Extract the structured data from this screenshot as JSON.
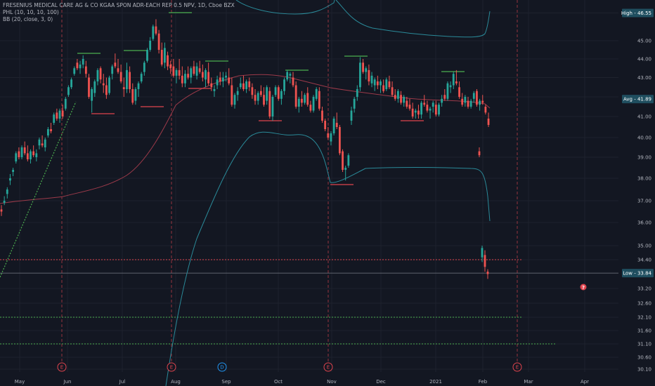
{
  "legend": {
    "title": "FRESENIUS MEDICAL CARE AG & CO KGAA SPON ADR-EACH REP 0.5 NPV, 1D, Cboe BZX",
    "indicator1": "PHL (10, 10, 10, 100)",
    "indicator2": "BB (20, close, 3, 0)"
  },
  "chart_data": {
    "type": "candlestick",
    "y_ticks": [
      "46.55",
      "45.00",
      "44.00",
      "43.00",
      "42.00",
      "41.00",
      "40.00",
      "39.00",
      "38.00",
      "37.00",
      "36.00",
      "35.00",
      "34.40",
      "33.20",
      "32.60",
      "32.10",
      "31.60",
      "31.10",
      "30.60",
      "30.10"
    ],
    "x_ticks": [
      "May",
      "Jun",
      "Jul",
      "Aug",
      "Sep",
      "Oct",
      "Nov",
      "Dec",
      "2021",
      "Feb",
      "Mar",
      "Apr"
    ],
    "price_labels": [
      {
        "text": "High - 46.55",
        "value": 46.55,
        "bg": "#1f4e5f",
        "color": "#ffffff"
      },
      {
        "text": "Avg - 41.89",
        "value": 41.89,
        "bg": "#1f4e5f",
        "color": "#ffffff"
      },
      {
        "text": "Low - 33.84",
        "value": 33.84,
        "bg": "#1f4e5f",
        "color": "#ffffff"
      }
    ],
    "events": [
      {
        "label": "E",
        "date": "May 28",
        "color": "#e0444e"
      },
      {
        "label": "E",
        "date": "Jul 30",
        "color": "#e0444e"
      },
      {
        "label": "D",
        "date": "Aug 28",
        "color": "#2196f3"
      },
      {
        "label": "E",
        "date": "Nov 3",
        "color": "#e0444e"
      },
      {
        "label": "E",
        "date": "Feb 24",
        "color": "#e0444e"
      }
    ],
    "horizontal_levels": [
      {
        "name": "red-dotted-level",
        "value": 34.4,
        "color": "#e0444e"
      },
      {
        "name": "green-dotted-level-1",
        "value": 32.1,
        "color": "#4caf50"
      },
      {
        "name": "green-dotted-level-2",
        "value": 31.1,
        "color": "#4caf50"
      }
    ],
    "ohlc": [
      [
        36.6,
        36.8,
        36.3,
        36.5
      ],
      [
        36.9,
        37.2,
        36.8,
        37.0
      ],
      [
        37.3,
        37.6,
        37.1,
        37.5
      ],
      [
        37.9,
        38.2,
        37.7,
        38.0
      ],
      [
        38.3,
        38.5,
        38.1,
        38.4
      ],
      [
        38.8,
        39.3,
        38.7,
        39.2
      ],
      [
        39.3,
        39.5,
        38.9,
        39.0
      ],
      [
        39.0,
        39.6,
        38.9,
        39.5
      ],
      [
        39.5,
        39.8,
        39.1,
        39.2
      ],
      [
        39.2,
        39.6,
        38.8,
        38.9
      ],
      [
        38.9,
        39.4,
        38.7,
        39.3
      ],
      [
        39.3,
        39.6,
        39.0,
        39.1
      ],
      [
        39.0,
        39.4,
        38.8,
        39.2
      ],
      [
        39.6,
        40.0,
        39.4,
        39.9
      ],
      [
        39.7,
        40.1,
        39.5,
        39.6
      ],
      [
        39.5,
        40.0,
        39.3,
        39.9
      ],
      [
        40.1,
        40.5,
        40.0,
        40.4
      ],
      [
        40.4,
        40.7,
        40.2,
        40.3
      ],
      [
        40.7,
        41.2,
        40.6,
        41.1
      ],
      [
        41.2,
        41.4,
        40.8,
        40.9
      ],
      [
        40.9,
        41.4,
        40.7,
        41.3
      ],
      [
        41.3,
        41.6,
        40.9,
        41.0
      ],
      [
        41.4,
        42.0,
        41.3,
        41.9
      ],
      [
        42.1,
        42.6,
        42.0,
        42.5
      ],
      [
        42.5,
        43.0,
        42.4,
        42.9
      ],
      [
        43.2,
        43.6,
        43.1,
        43.5
      ],
      [
        43.8,
        44.0,
        43.4,
        43.5
      ],
      [
        43.5,
        43.9,
        43.2,
        43.7
      ],
      [
        43.7,
        44.2,
        43.5,
        44.0
      ],
      [
        43.6,
        43.9,
        43.0,
        43.2
      ],
      [
        43.0,
        43.2,
        41.9,
        42.0
      ],
      [
        41.8,
        42.5,
        41.2,
        42.4
      ],
      [
        42.2,
        42.9,
        42.0,
        42.8
      ],
      [
        42.8,
        43.5,
        42.6,
        43.4
      ],
      [
        43.5,
        43.6,
        42.7,
        42.9
      ],
      [
        42.7,
        43.2,
        42.2,
        42.6
      ],
      [
        42.6,
        43.0,
        41.9,
        42.1
      ],
      [
        42.2,
        43.1,
        42.1,
        43.0
      ],
      [
        43.2,
        43.7,
        42.9,
        43.6
      ],
      [
        43.8,
        44.3,
        43.5,
        43.6
      ],
      [
        43.5,
        44.0,
        43.2,
        43.3
      ],
      [
        43.3,
        43.7,
        42.7,
        42.8
      ],
      [
        42.5,
        43.0,
        42.0,
        42.4
      ],
      [
        42.4,
        43.8,
        42.2,
        43.4
      ],
      [
        43.3,
        43.6,
        42.2,
        42.4
      ],
      [
        42.4,
        42.7,
        41.6,
        41.7
      ],
      [
        41.8,
        42.5,
        41.6,
        42.4
      ],
      [
        42.4,
        42.8,
        42.0,
        42.7
      ],
      [
        42.8,
        43.3,
        42.7,
        43.2
      ],
      [
        43.3,
        43.9,
        43.1,
        43.8
      ],
      [
        43.9,
        44.6,
        43.8,
        44.5
      ],
      [
        44.5,
        45.2,
        44.4,
        45.0
      ],
      [
        45.1,
        45.9,
        45.0,
        45.8
      ],
      [
        45.8,
        46.2,
        45.3,
        45.4
      ],
      [
        45.4,
        45.6,
        44.3,
        44.5
      ],
      [
        44.5,
        44.9,
        43.6,
        43.7
      ],
      [
        43.8,
        44.9,
        43.5,
        44.6
      ],
      [
        44.2,
        44.4,
        43.4,
        43.6
      ],
      [
        43.7,
        43.9,
        43.2,
        43.5
      ],
      [
        43.6,
        44.0,
        43.0,
        43.1
      ],
      [
        43.1,
        43.5,
        42.7,
        43.4
      ],
      [
        43.4,
        44.0,
        42.9,
        43.1
      ],
      [
        43.1,
        43.6,
        42.5,
        42.7
      ],
      [
        42.7,
        43.4,
        42.5,
        43.2
      ],
      [
        43.2,
        43.6,
        42.9,
        43.0
      ],
      [
        43.0,
        43.6,
        42.7,
        43.5
      ],
      [
        43.6,
        43.9,
        43.1,
        43.2
      ],
      [
        43.1,
        43.8,
        42.9,
        43.6
      ],
      [
        43.5,
        43.9,
        43.2,
        43.3
      ],
      [
        43.3,
        43.7,
        42.8,
        43.0
      ],
      [
        42.9,
        43.5,
        42.5,
        43.4
      ],
      [
        43.3,
        43.8,
        42.6,
        42.7
      ],
      [
        42.7,
        43.0,
        42.3,
        42.5
      ],
      [
        42.3,
        42.6,
        42.0,
        42.4
      ],
      [
        42.6,
        43.1,
        42.4,
        42.9
      ],
      [
        43.0,
        43.3,
        42.6,
        42.8
      ],
      [
        42.8,
        43.3,
        42.5,
        43.0
      ],
      [
        43.0,
        43.3,
        42.8,
        43.1
      ],
      [
        43.0,
        43.5,
        42.6,
        42.7
      ],
      [
        42.6,
        43.0,
        41.5,
        41.6
      ],
      [
        41.6,
        42.2,
        41.4,
        42.1
      ],
      [
        42.1,
        42.5,
        41.8,
        42.3
      ],
      [
        42.5,
        43.0,
        42.4,
        42.7
      ],
      [
        42.7,
        43.1,
        42.3,
        42.4
      ],
      [
        42.4,
        42.9,
        42.2,
        42.8
      ],
      [
        42.8,
        43.0,
        42.3,
        42.5
      ],
      [
        42.5,
        42.7,
        41.9,
        42.1
      ],
      [
        42.1,
        42.4,
        41.6,
        41.8
      ],
      [
        41.8,
        42.3,
        41.6,
        42.2
      ],
      [
        42.3,
        42.6,
        42.0,
        42.1
      ],
      [
        42.1,
        42.5,
        41.5,
        41.6
      ],
      [
        41.8,
        42.6,
        41.6,
        42.5
      ],
      [
        42.3,
        42.5,
        40.9,
        41.0
      ],
      [
        41.0,
        42.1,
        40.8,
        42.0
      ],
      [
        42.1,
        42.6,
        42.0,
        42.5
      ],
      [
        42.5,
        42.6,
        41.8,
        41.9
      ],
      [
        41.9,
        42.4,
        41.6,
        42.3
      ],
      [
        42.3,
        43.0,
        42.1,
        42.9
      ],
      [
        42.9,
        43.4,
        42.8,
        43.3
      ],
      [
        43.1,
        43.3,
        42.7,
        43.2
      ],
      [
        43.0,
        43.3,
        42.5,
        42.6
      ],
      [
        42.6,
        42.8,
        41.4,
        41.5
      ],
      [
        41.5,
        42.0,
        41.2,
        41.9
      ],
      [
        41.9,
        42.3,
        41.5,
        41.7
      ],
      [
        41.7,
        42.2,
        41.6,
        42.1
      ],
      [
        42.2,
        42.5,
        41.5,
        41.6
      ],
      [
        41.6,
        41.8,
        41.2,
        41.3
      ],
      [
        41.3,
        42.1,
        41.2,
        42.0
      ],
      [
        41.9,
        42.5,
        41.8,
        42.4
      ],
      [
        42.3,
        42.5,
        41.3,
        41.4
      ],
      [
        41.3,
        41.5,
        40.7,
        40.8
      ],
      [
        40.8,
        40.9,
        40.3,
        40.4
      ],
      [
        40.2,
        40.5,
        39.9,
        40.0
      ],
      [
        39.8,
        40.3,
        39.6,
        40.2
      ],
      [
        40.2,
        41.0,
        40.1,
        40.9
      ],
      [
        40.7,
        41.2,
        40.4,
        40.5
      ],
      [
        40.5,
        40.6,
        39.1,
        39.2
      ],
      [
        39.3,
        39.4,
        38.3,
        38.4
      ],
      [
        38.4,
        38.6,
        37.9,
        38.5
      ],
      [
        38.6,
        39.2,
        38.5,
        39.1
      ],
      [
        40.8,
        41.5,
        40.6,
        41.3
      ],
      [
        41.4,
        42.0,
        41.2,
        41.9
      ],
      [
        42.0,
        42.6,
        41.8,
        42.4
      ],
      [
        42.5,
        44.1,
        42.3,
        43.8
      ],
      [
        43.8,
        44.0,
        43.2,
        43.3
      ],
      [
        43.3,
        43.6,
        42.9,
        43.5
      ],
      [
        43.4,
        43.7,
        42.6,
        42.8
      ],
      [
        42.7,
        43.3,
        42.5,
        43.1
      ],
      [
        42.6,
        43.0,
        42.3,
        42.9
      ],
      [
        42.8,
        43.1,
        42.4,
        42.6
      ],
      [
        42.6,
        42.9,
        42.2,
        42.8
      ],
      [
        42.6,
        42.9,
        42.2,
        42.3
      ],
      [
        42.4,
        43.0,
        42.3,
        42.9
      ],
      [
        42.8,
        43.1,
        42.4,
        42.5
      ],
      [
        42.5,
        42.8,
        42.0,
        42.1
      ],
      [
        42.1,
        42.4,
        41.8,
        41.9
      ],
      [
        41.9,
        42.4,
        41.7,
        42.3
      ],
      [
        42.1,
        42.3,
        41.6,
        41.7
      ],
      [
        41.7,
        42.1,
        41.5,
        42.0
      ],
      [
        41.8,
        42.0,
        41.4,
        41.5
      ],
      [
        41.6,
        41.9,
        41.3,
        41.4
      ],
      [
        41.4,
        41.7,
        40.9,
        41.0
      ],
      [
        41.2,
        41.4,
        40.9,
        41.3
      ],
      [
        41.3,
        41.6,
        40.9,
        41.1
      ],
      [
        41.1,
        41.8,
        40.9,
        41.7
      ],
      [
        41.7,
        42.1,
        41.5,
        41.6
      ],
      [
        41.6,
        41.8,
        41.2,
        41.3
      ],
      [
        41.3,
        41.5,
        40.9,
        41.4
      ],
      [
        41.5,
        41.8,
        41.2,
        41.7
      ],
      [
        41.6,
        41.8,
        41.0,
        41.1
      ],
      [
        41.1,
        41.7,
        41.0,
        41.6
      ],
      [
        41.7,
        42.1,
        41.5,
        41.9
      ],
      [
        42.1,
        42.4,
        41.8,
        41.9
      ],
      [
        41.9,
        42.8,
        41.8,
        42.7
      ],
      [
        42.5,
        42.8,
        42.2,
        42.6
      ],
      [
        42.6,
        43.3,
        42.4,
        43.2
      ],
      [
        42.8,
        43.4,
        42.6,
        42.7
      ],
      [
        42.5,
        42.8,
        41.9,
        42.0
      ],
      [
        41.9,
        42.2,
        41.5,
        41.6
      ],
      [
        41.7,
        42.1,
        41.5,
        42.0
      ],
      [
        41.8,
        42.0,
        41.4,
        41.5
      ],
      [
        41.5,
        41.9,
        41.4,
        41.8
      ],
      [
        41.9,
        42.3,
        41.7,
        42.2
      ],
      [
        42.3,
        42.4,
        41.5,
        41.6
      ],
      [
        41.6,
        41.9,
        41.3,
        41.8
      ],
      [
        41.8,
        42.1,
        41.6,
        41.7
      ],
      [
        41.5,
        41.6,
        41.1,
        41.2
      ],
      [
        40.9,
        41.2,
        40.5,
        40.6
      ],
      [
        39.3,
        39.5,
        39.0,
        39.1
      ],
      [
        34.5,
        35.0,
        34.3,
        34.9
      ],
      [
        34.6,
        34.8,
        33.9,
        34.1
      ],
      [
        33.9,
        34.0,
        33.6,
        33.8
      ]
    ],
    "ohlc_x_dates_note": "",
    "bb_upper": [],
    "bb_lower": []
  }
}
